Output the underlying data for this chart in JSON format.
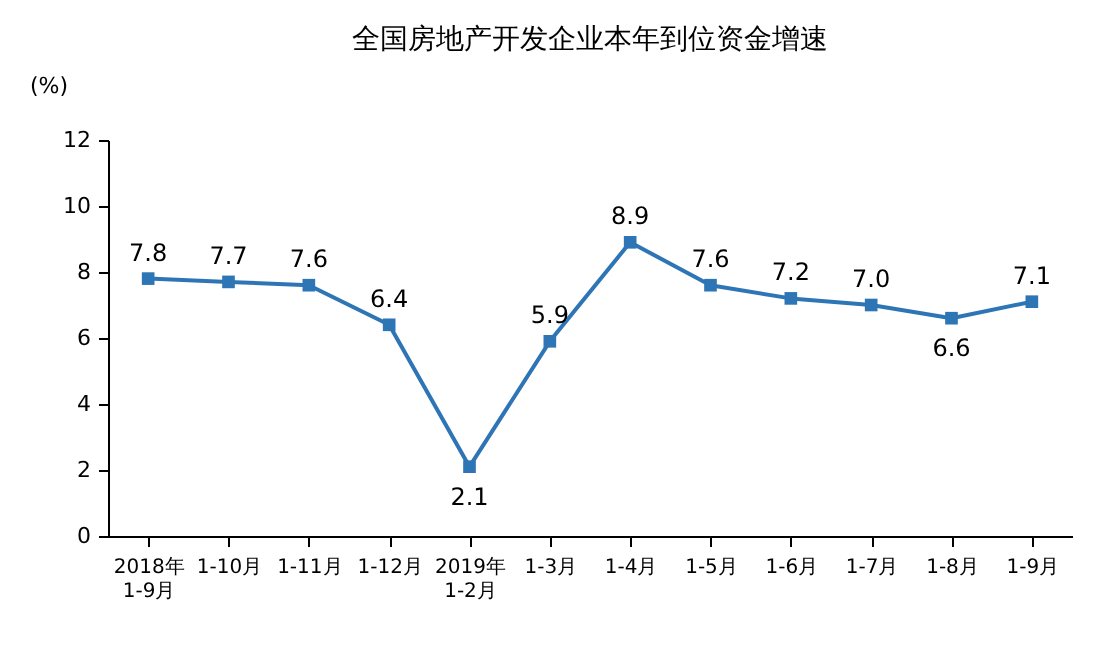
{
  "chart_data": {
    "type": "line",
    "title": "全国房地产开发企业本年到位资金增速",
    "ylabel": "(%)",
    "categories": [
      "2018年\n1-9月",
      "1-10月",
      "1-11月",
      "1-12月",
      "2019年\n1-2月",
      "1-3月",
      "1-4月",
      "1-5月",
      "1-6月",
      "1-7月",
      "1-8月",
      "1-9月"
    ],
    "series": [
      {
        "color": "#2e75b6",
        "values": [
          7.8,
          7.7,
          7.6,
          6.4,
          2.1,
          5.9,
          8.9,
          7.6,
          7.2,
          7.0,
          6.6,
          7.1
        ],
        "value_labels": [
          "7.8",
          "7.7",
          "7.6",
          "6.4",
          "2.1",
          "5.9",
          "8.9",
          "7.6",
          "7.2",
          "7.0",
          "6.6",
          "7.1"
        ]
      }
    ],
    "ylim": [
      0,
      12
    ],
    "yticks": [
      0,
      2,
      4,
      6,
      8,
      10,
      12
    ],
    "marker": "square",
    "line_style": "solid",
    "grid": false
  }
}
